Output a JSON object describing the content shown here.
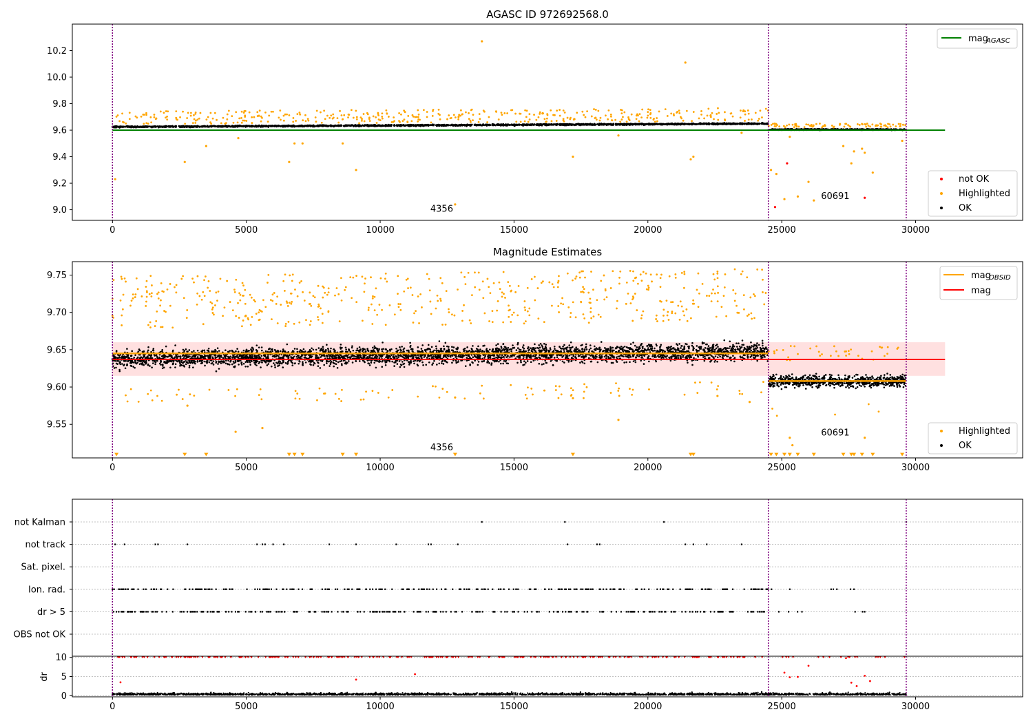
{
  "chart_data": [
    {
      "type": "scatter",
      "title": "AGASC ID 972692568.0",
      "xlim": [
        -1500,
        34000
      ],
      "ylim": [
        8.92,
        10.4
      ],
      "x_ticks": [
        0,
        5000,
        10000,
        15000,
        20000,
        25000,
        30000
      ],
      "y_ticks": [
        9.0,
        9.2,
        9.4,
        9.6,
        9.8,
        10.0,
        10.2
      ],
      "obsid_boundaries": [
        0,
        24500,
        29650
      ],
      "obsid_labels": [
        {
          "text": "4356",
          "x": 12300,
          "y": 8.985
        },
        {
          "text": "60691",
          "x": 27000,
          "y": 9.08
        }
      ],
      "lines": [
        {
          "name": "mag_AGASC",
          "x": [
            0,
            31100
          ],
          "y": [
            9.6,
            9.6
          ],
          "color": "#008000"
        }
      ],
      "legend_upper": {
        "placement": "upper right",
        "entries": [
          {
            "label": "mag",
            "sub": "AGASC",
            "color": "#008000",
            "marker": "line"
          }
        ]
      },
      "legend_lower": {
        "placement": "lower right",
        "entries": [
          {
            "label": "not OK",
            "color": "#ff0000",
            "marker": "dot"
          },
          {
            "label": "Highlighted",
            "color": "#ffa500",
            "marker": "dot"
          },
          {
            "label": "OK",
            "color": "#000000",
            "marker": "dot"
          }
        ]
      },
      "series": [
        {
          "name": "OK",
          "color": "#000000",
          "description": "dense band",
          "segments": [
            {
              "x": [
                0,
                24500
              ],
              "y_center": [
                9.625,
                9.65
              ],
              "spread": 0.03
            },
            {
              "x": [
                24500,
                29650
              ],
              "y_center": [
                9.605,
                9.605
              ],
              "spread": 0.025
            }
          ]
        },
        {
          "name": "Highlighted",
          "color": "#ffa500",
          "points": [
            [
              100,
              9.23
            ],
            [
              2700,
              9.36
            ],
            [
              3500,
              9.48
            ],
            [
              4700,
              9.54
            ],
            [
              6600,
              9.36
            ],
            [
              6800,
              9.5
            ],
            [
              7100,
              9.5
            ],
            [
              8600,
              9.5
            ],
            [
              9100,
              9.3
            ],
            [
              13800,
              10.27
            ],
            [
              12800,
              9.04
            ],
            [
              17200,
              9.4
            ],
            [
              18900,
              9.56
            ],
            [
              21400,
              10.11
            ],
            [
              21600,
              9.38
            ],
            [
              21700,
              9.4
            ],
            [
              23500,
              9.58
            ],
            [
              24600,
              9.3
            ],
            [
              24800,
              9.27
            ],
            [
              25100,
              9.08
            ],
            [
              25300,
              9.55
            ],
            [
              25600,
              9.1
            ],
            [
              26000,
              9.21
            ],
            [
              26200,
              9.07
            ],
            [
              27300,
              9.48
            ],
            [
              27600,
              9.35
            ],
            [
              27700,
              9.44
            ],
            [
              28000,
              9.46
            ],
            [
              28100,
              9.43
            ],
            [
              28400,
              9.28
            ],
            [
              29500,
              9.52
            ]
          ]
        },
        {
          "name": "not OK",
          "color": "#ff0000",
          "points": [
            [
              24750,
              9.02
            ],
            [
              25200,
              9.35
            ],
            [
              28100,
              9.09
            ]
          ]
        }
      ]
    },
    {
      "type": "scatter",
      "title": "Magnitude Estimates",
      "xlim": [
        -1500,
        34000
      ],
      "ylim": [
        9.505,
        9.768
      ],
      "x_ticks": [
        0,
        5000,
        10000,
        15000,
        20000,
        25000,
        30000
      ],
      "y_ticks": [
        9.55,
        9.6,
        9.65,
        9.7,
        9.75
      ],
      "obsid_boundaries": [
        0,
        24500,
        29650
      ],
      "obsid_labels": [
        {
          "text": "4356",
          "x": 12300,
          "y": 9.515
        },
        {
          "text": "60691",
          "x": 27000,
          "y": 9.535
        }
      ],
      "bands": [
        {
          "x": [
            0,
            31100
          ],
          "y": [
            9.615,
            9.66
          ],
          "color": "#ffcccc"
        }
      ],
      "lines": [
        {
          "name": "mag",
          "x": [
            0,
            31100
          ],
          "y": [
            9.637,
            9.637
          ],
          "color": "#ff0000"
        },
        {
          "name": "mag_OBSID",
          "segments": [
            {
              "x": [
                0,
                24500
              ],
              "y": 9.645
            },
            {
              "x": [
                24500,
                29650
              ],
              "y": 9.608
            }
          ],
          "color": "#ffa500"
        }
      ],
      "legend_upper": {
        "placement": "upper right",
        "entries": [
          {
            "label": "mag",
            "sub": "OBSID",
            "color": "#ffa500",
            "marker": "line"
          },
          {
            "label": "mag",
            "sub": "",
            "color": "#ff0000",
            "marker": "line"
          }
        ]
      },
      "legend_lower": {
        "placement": "lower right",
        "entries": [
          {
            "label": "Highlighted",
            "color": "#ffa500",
            "marker": "dot"
          },
          {
            "label": "OK",
            "color": "#000000",
            "marker": "dot"
          }
        ]
      },
      "series": [
        {
          "name": "OK",
          "color": "#000000",
          "segments": [
            {
              "x": [
                0,
                24500
              ],
              "y_center": [
                9.638,
                9.648
              ],
              "spread": 0.045
            },
            {
              "x": [
                24500,
                29650
              ],
              "y_center": [
                9.608,
                9.608
              ],
              "spread": 0.03
            }
          ]
        },
        {
          "name": "Highlighted",
          "color": "#ffa500",
          "points": [
            [
              4600,
              9.54
            ],
            [
              5600,
              9.545
            ],
            [
              18900,
              9.556
            ],
            [
              12800,
              9.586
            ],
            [
              2800,
              9.575
            ],
            [
              23800,
              9.58
            ],
            [
              25300,
              9.532
            ],
            [
              25400,
              9.522
            ],
            [
              28100,
              9.532
            ],
            [
              17200,
              9.585
            ],
            [
              22600,
              9.588
            ]
          ]
        },
        {
          "name": "Highlighted (below range)",
          "color": "#ffa500",
          "marker": "triangle-down",
          "y": 9.509,
          "x": [
            150,
            2700,
            3500,
            6600,
            6800,
            7100,
            8600,
            9100,
            12800,
            17200,
            21600,
            21700,
            24600,
            24800,
            25100,
            25300,
            25600,
            26200,
            27300,
            27600,
            27700,
            28000,
            28400,
            29500
          ]
        }
      ]
    },
    {
      "type": "scatter",
      "title": "",
      "xlim": [
        -1500,
        34000
      ],
      "x_ticks": [
        0,
        5000,
        10000,
        15000,
        20000,
        25000,
        30000
      ],
      "obsid_boundaries": [
        0,
        24500,
        29650
      ],
      "flag_rows": [
        "not Kalman",
        "not track",
        "Sat. pixel.",
        "Ion. rad.",
        "dr > 5",
        "OBS not OK"
      ],
      "flags": {
        "not Kalman": [
          13800,
          16900,
          20600,
          29650
        ],
        "not track": [
          100,
          450,
          1600,
          1700,
          2800,
          5400,
          5600,
          5700,
          6000,
          6400,
          8100,
          9100,
          10600,
          11800,
          11900,
          12900,
          17000,
          18100,
          18200,
          21400,
          21700,
          22200,
          23500
        ],
        "Sat. pixel.": [],
        "Ion. rad.": "dense 0-24500, sparse 24500-27700",
        "dr > 5": "dense 0-24500, sparse 24500-28100",
        "OBS not OK": []
      },
      "dr_panel": {
        "ylabel": "dr",
        "ylim": [
          -0.3,
          10.3
        ],
        "y_ticks": [
          0,
          5,
          10
        ],
        "series": [
          {
            "name": "dr",
            "color": "#000000",
            "band": [
              0,
              2
            ]
          },
          {
            "name": "dr > 5 (clipped)",
            "color": "#ff0000",
            "y": 10
          }
        ]
      }
    }
  ]
}
